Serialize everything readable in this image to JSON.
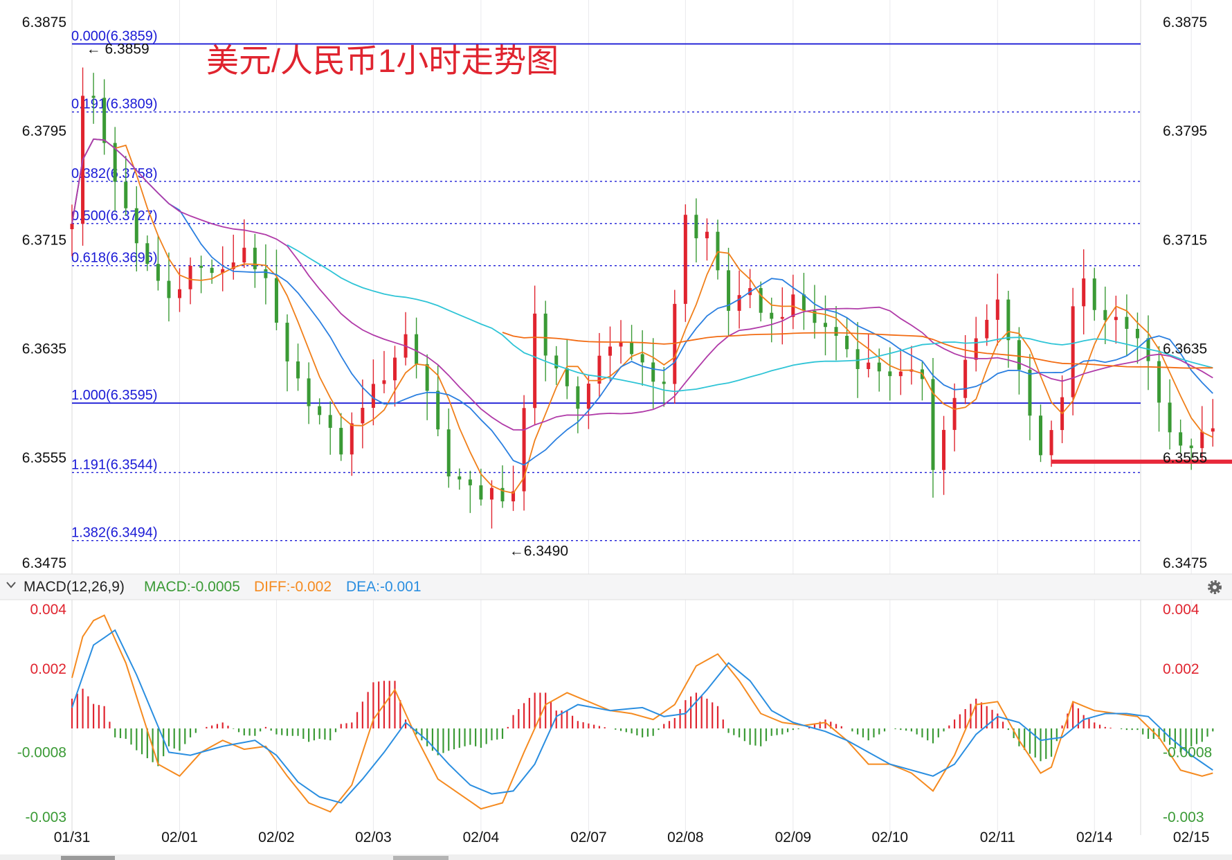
{
  "title": "美元/人民币1小时走势图",
  "colors": {
    "up": "#e0242f",
    "down": "#3a9a35",
    "fib_line": "#1a1ad6",
    "ma_orange": "#f07f1a",
    "ma_blue": "#2a7fe0",
    "ma_purple": "#b03aa8",
    "ma_cyan": "#2ec4d6",
    "ma_slow_orange": "#f26b12",
    "diff": "#f58a1f",
    "dea": "#2a8ee0",
    "support": "#e8283a"
  },
  "chart_data": [
    {
      "type": "line",
      "name": "price",
      "x_ticks": [
        "01/31",
        "02/01",
        "02/02",
        "02/03",
        "02/04",
        "02/07",
        "02/08",
        "02/09",
        "02/10",
        "02/11",
        "02/14",
        "02/15"
      ],
      "y_ticks": [
        "6.3875",
        "6.3795",
        "6.3715",
        "6.3635",
        "6.3555",
        "6.3475"
      ],
      "ylim": [
        6.3475,
        6.3875
      ],
      "fib_levels": [
        {
          "ratio": "0.000",
          "price": 6.3859,
          "label": "0.000(6.3859)"
        },
        {
          "ratio": "0.191",
          "price": 6.3809,
          "label": "0.191(6.3809)"
        },
        {
          "ratio": "0.382",
          "price": 6.3758,
          "label": "0.382(6.3758)"
        },
        {
          "ratio": "0.500",
          "price": 6.3727,
          "label": "0.500(6.3727)"
        },
        {
          "ratio": "0.618",
          "price": 6.3696,
          "label": "0.618(6.3696)"
        },
        {
          "ratio": "1.000",
          "price": 6.3595,
          "label": "1.000(6.3595)"
        },
        {
          "ratio": "1.191",
          "price": 6.3544,
          "label": "1.191(6.3544)"
        },
        {
          "ratio": "1.382",
          "price": 6.3494,
          "label": "1.382(6.3494)"
        }
      ],
      "annotations": [
        {
          "text": "← 6.3859",
          "x": 1.2,
          "price": 6.3859
        },
        {
          "text": "←6.3490",
          "x": 40.5,
          "price": 6.349
        }
      ],
      "support_price": 6.3552,
      "support_x": [
        91,
        108
      ],
      "anchors": [
        [
          0,
          6.373
        ],
        [
          1.3,
          6.3845
        ],
        [
          2.5,
          6.38
        ],
        [
          4,
          6.376
        ],
        [
          6,
          6.371
        ],
        [
          9,
          6.3672
        ],
        [
          11,
          6.3695
        ],
        [
          14,
          6.369
        ],
        [
          16,
          6.371
        ],
        [
          18,
          6.3682
        ],
        [
          20,
          6.3622
        ],
        [
          23,
          6.3585
        ],
        [
          25,
          6.356
        ],
        [
          27,
          6.3595
        ],
        [
          29,
          6.3615
        ],
        [
          31,
          6.3645
        ],
        [
          33,
          6.3605
        ],
        [
          35,
          6.3545
        ],
        [
          37,
          6.353
        ],
        [
          38.5,
          6.3525
        ],
        [
          39.5,
          6.3545
        ],
        [
          40.5,
          6.3495
        ],
        [
          42,
          6.359
        ],
        [
          43,
          6.3665
        ],
        [
          44,
          6.363
        ],
        [
          46,
          6.3605
        ],
        [
          47,
          6.3595
        ],
        [
          49,
          6.3625
        ],
        [
          51,
          6.364
        ],
        [
          53,
          6.3625
        ],
        [
          55,
          6.3605
        ],
        [
          57,
          6.3735
        ],
        [
          58,
          6.3715
        ],
        [
          59,
          6.372
        ],
        [
          61,
          6.3665
        ],
        [
          63,
          6.3675
        ],
        [
          65,
          6.3655
        ],
        [
          67,
          6.367
        ],
        [
          69,
          6.3655
        ],
        [
          71,
          6.3645
        ],
        [
          73,
          6.3625
        ],
        [
          75,
          6.362
        ],
        [
          77,
          6.3615
        ],
        [
          79,
          6.3615
        ],
        [
          80,
          6.355
        ],
        [
          81,
          6.3575
        ],
        [
          83,
          6.3625
        ],
        [
          85,
          6.3655
        ],
        [
          86,
          6.367
        ],
        [
          88,
          6.362
        ],
        [
          89,
          6.3585
        ],
        [
          90,
          6.356
        ],
        [
          92,
          6.3595
        ],
        [
          93,
          6.3665
        ],
        [
          94,
          6.3685
        ],
        [
          95,
          6.366
        ],
        [
          97,
          6.3655
        ],
        [
          99,
          6.3645
        ],
        [
          100,
          6.3625
        ],
        [
          102,
          6.3575
        ],
        [
          103,
          6.356
        ],
        [
          105,
          6.357
        ],
        [
          106,
          6.3575
        ]
      ],
      "ma": [
        {
          "name": "orange",
          "period": 5
        },
        {
          "name": "blue",
          "period": 10
        },
        {
          "name": "purple",
          "period": 20
        },
        {
          "name": "cyan",
          "period": 40
        },
        {
          "name": "slow_orange",
          "period": 80
        }
      ]
    },
    {
      "type": "bar",
      "name": "macd",
      "indicator_label": "MACD(12,26,9)",
      "macd_label": "MACD:-0.0005",
      "diff_label": "DIFF:-0.002",
      "dea_label": "DEA:-0.001",
      "y_ticks": [
        "0.004",
        "0.002",
        "-0.0008",
        "-0.003"
      ],
      "ylim": [
        -0.003,
        0.004
      ],
      "diff_anchors": [
        [
          0,
          0.0017
        ],
        [
          1.3,
          0.0035
        ],
        [
          3,
          0.0038
        ],
        [
          5,
          0.0022
        ],
        [
          8,
          -0.0012
        ],
        [
          10,
          -0.0016
        ],
        [
          12,
          -0.0008
        ],
        [
          14,
          -0.0004
        ],
        [
          16,
          -0.0007
        ],
        [
          18,
          -0.0006
        ],
        [
          20,
          -0.0016
        ],
        [
          22,
          -0.0025
        ],
        [
          24,
          -0.0028
        ],
        [
          26,
          -0.0019
        ],
        [
          28,
          0.0003
        ],
        [
          30,
          0.0013
        ],
        [
          32,
          -0.0003
        ],
        [
          34,
          -0.0017
        ],
        [
          36,
          -0.0022
        ],
        [
          38,
          -0.0027
        ],
        [
          40,
          -0.0025
        ],
        [
          42,
          -0.0008
        ],
        [
          44,
          0.0008
        ],
        [
          46,
          0.0012
        ],
        [
          48,
          0.0009
        ],
        [
          50,
          0.0006
        ],
        [
          52,
          0.0005
        ],
        [
          54,
          0.0003
        ],
        [
          56,
          0.0008
        ],
        [
          58,
          0.0021
        ],
        [
          60,
          0.0025
        ],
        [
          62,
          0.0016
        ],
        [
          64,
          0.0005
        ],
        [
          66,
          0.0002
        ],
        [
          68,
          0.0001
        ],
        [
          70,
          0.0002
        ],
        [
          72,
          -0.0004
        ],
        [
          74,
          -0.0012
        ],
        [
          76,
          -0.0012
        ],
        [
          78,
          -0.0015
        ],
        [
          80,
          -0.0021
        ],
        [
          82,
          -0.0009
        ],
        [
          84,
          0.0008
        ],
        [
          86,
          0.0009
        ],
        [
          88,
          -0.0004
        ],
        [
          90,
          -0.0015
        ],
        [
          91,
          -0.0013
        ],
        [
          93,
          0.0009
        ],
        [
          95,
          0.0006
        ],
        [
          97,
          0.0005
        ],
        [
          99,
          0.0004
        ],
        [
          101,
          -0.0003
        ],
        [
          103,
          -0.0014
        ],
        [
          105,
          -0.0016
        ],
        [
          106,
          -0.0015
        ]
      ],
      "dea_anchors": [
        [
          0,
          0.0007
        ],
        [
          2,
          0.0028
        ],
        [
          4,
          0.0033
        ],
        [
          6,
          0.0018
        ],
        [
          9,
          -0.0008
        ],
        [
          11,
          -0.0009
        ],
        [
          14,
          -0.0006
        ],
        [
          17,
          -0.0004
        ],
        [
          19,
          -0.0009
        ],
        [
          21,
          -0.0018
        ],
        [
          23,
          -0.0023
        ],
        [
          25,
          -0.0025
        ],
        [
          27,
          -0.0017
        ],
        [
          29,
          -0.0008
        ],
        [
          31,
          0.0002
        ],
        [
          33,
          -0.0004
        ],
        [
          35,
          -0.0012
        ],
        [
          37,
          -0.0019
        ],
        [
          39,
          -0.0022
        ],
        [
          41,
          -0.0021
        ],
        [
          43,
          -0.0012
        ],
        [
          45,
          0.0004
        ],
        [
          47,
          0.0008
        ],
        [
          50,
          0.0006
        ],
        [
          53,
          0.0007
        ],
        [
          55,
          0.0004
        ],
        [
          57,
          0.0005
        ],
        [
          59,
          0.0013
        ],
        [
          61,
          0.0022
        ],
        [
          63,
          0.0016
        ],
        [
          65,
          0.0006
        ],
        [
          67,
          0.0002
        ],
        [
          70,
          -0.0001
        ],
        [
          72,
          -0.0004
        ],
        [
          74,
          -0.0008
        ],
        [
          76,
          -0.0012
        ],
        [
          78,
          -0.0014
        ],
        [
          80,
          -0.0016
        ],
        [
          82,
          -0.0012
        ],
        [
          84,
          -0.0002
        ],
        [
          86,
          0.0004
        ],
        [
          88,
          0.0002
        ],
        [
          90,
          -0.0004
        ],
        [
          92,
          -0.0003
        ],
        [
          94,
          0.0003
        ],
        [
          96,
          0.0005
        ],
        [
          98,
          0.0005
        ],
        [
          100,
          0.0004
        ],
        [
          102,
          -0.0003
        ],
        [
          104,
          -0.0009
        ],
        [
          106,
          -0.0014
        ]
      ]
    }
  ]
}
